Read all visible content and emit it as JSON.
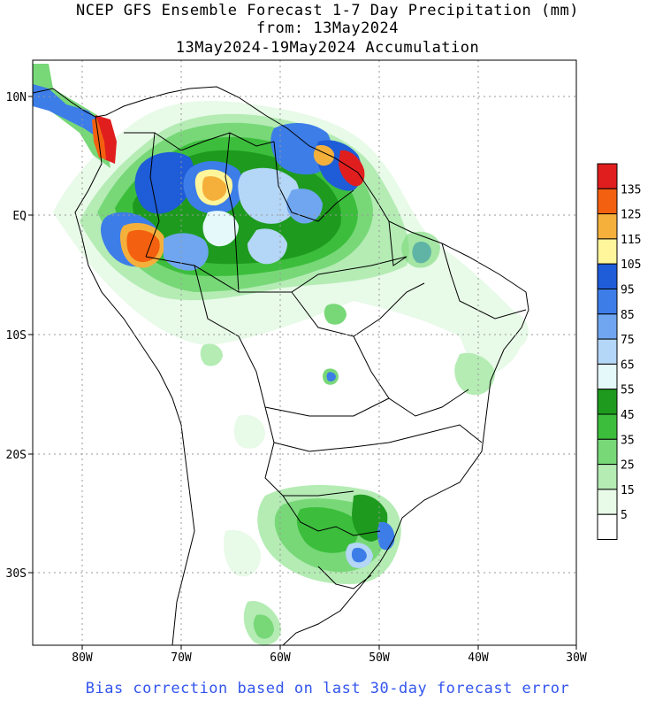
{
  "title": {
    "line1": "NCEP GFS Ensemble Forecast 1-7 Day Precipitation (mm)",
    "line2": "from: 13May2024",
    "line3": "13May2024-19May2024 Accumulation"
  },
  "axes": {
    "lat_labels": [
      "10N",
      "EQ",
      "10S",
      "20S",
      "30S"
    ],
    "lon_labels": [
      "80W",
      "70W",
      "60W",
      "50W",
      "40W",
      "30W"
    ]
  },
  "legend": {
    "labels": [
      "135",
      "125",
      "115",
      "105",
      "95",
      "85",
      "75",
      "65",
      "55",
      "45",
      "35",
      "25",
      "15",
      "5"
    ],
    "colors": [
      "#e01e1e",
      "#f36010",
      "#f5b03c",
      "#fff59a",
      "#1e5cd8",
      "#3c7de8",
      "#6fa6ef",
      "#b4d6f7",
      "#e5f8fa",
      "#1e9b1e",
      "#3cbe3c",
      "#78d878",
      "#b4ecb4",
      "#e8fae8",
      "#ffffff"
    ]
  },
  "footer": "Bias correction based on last 30-day forecast error"
}
